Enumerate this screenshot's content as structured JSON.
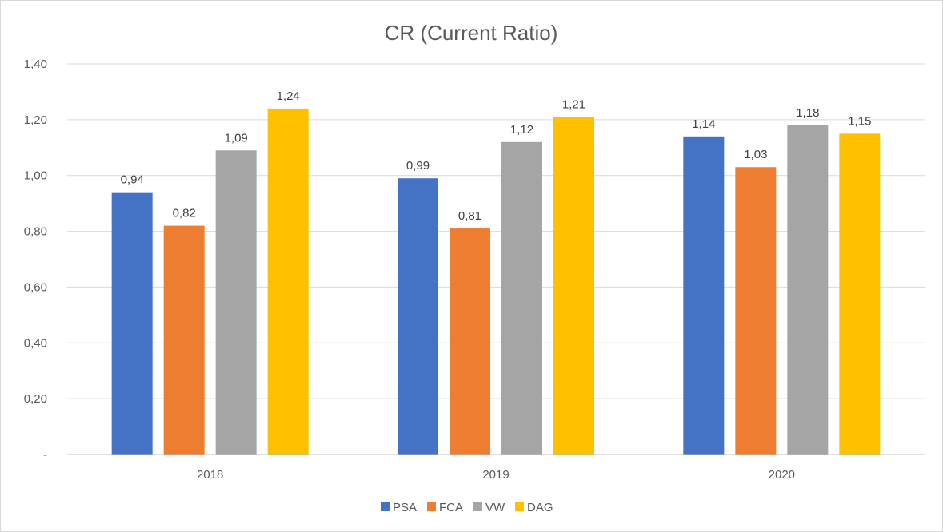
{
  "chart_data": {
    "type": "bar",
    "title": "CR (Current Ratio)",
    "categories": [
      "2018",
      "2019",
      "2020"
    ],
    "series": [
      {
        "name": "PSA",
        "color": "#4472C4",
        "values": [
          0.94,
          0.99,
          1.14
        ]
      },
      {
        "name": "FCA",
        "color": "#ED7D31",
        "values": [
          0.82,
          0.81,
          1.03
        ]
      },
      {
        "name": "VW",
        "color": "#A5A5A5",
        "values": [
          1.09,
          1.12,
          1.18
        ]
      },
      {
        "name": "DAG",
        "color": "#FFC000",
        "values": [
          1.24,
          1.21,
          1.15
        ]
      }
    ],
    "data_labels": [
      [
        "0,94",
        "0,99",
        "1,14"
      ],
      [
        "0,82",
        "0,81",
        "1,03"
      ],
      [
        "1,09",
        "1,12",
        "1,18"
      ],
      [
        "1,24",
        "1,21",
        "1,15"
      ]
    ],
    "ylim": [
      0,
      1.4
    ],
    "yticks": [
      0,
      0.2,
      0.4,
      0.6,
      0.8,
      1.0,
      1.2,
      1.4
    ],
    "ytick_labels": [
      "-",
      "0,20",
      "0,40",
      "0,60",
      "0,80",
      "1,00",
      "1,20",
      "1,40"
    ],
    "xlabel": "",
    "ylabel": "",
    "grid": true,
    "legend_position": "bottom"
  }
}
